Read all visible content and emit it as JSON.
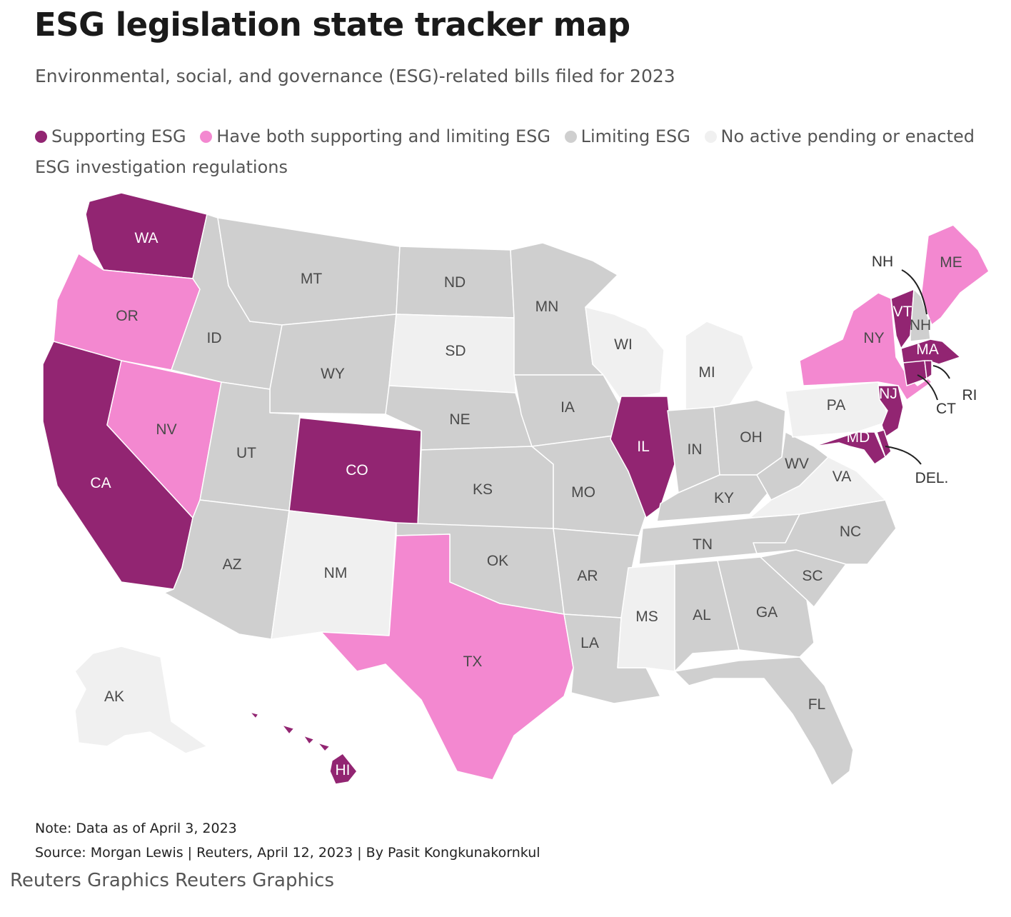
{
  "title": "ESG legislation state tracker map",
  "subtitle": "Environmental, social, and governance (ESG)-related bills filed for 2023",
  "legend": [
    {
      "key": "support",
      "label": "Supporting ESG",
      "color": "#922572"
    },
    {
      "key": "both",
      "label": "Have both supporting and limiting ESG",
      "color": "#f388d0"
    },
    {
      "key": "limit",
      "label": "Limiting ESG",
      "color": "#cfcfcf"
    },
    {
      "key": "none",
      "label": "No active pending or enacted ESG investigation regulations",
      "color": "#f0f0f0"
    }
  ],
  "states": [
    {
      "abbr": "WA",
      "category": "support"
    },
    {
      "abbr": "OR",
      "category": "both"
    },
    {
      "abbr": "CA",
      "category": "support"
    },
    {
      "abbr": "NV",
      "category": "both"
    },
    {
      "abbr": "ID",
      "category": "limit"
    },
    {
      "abbr": "MT",
      "category": "limit"
    },
    {
      "abbr": "WY",
      "category": "limit"
    },
    {
      "abbr": "UT",
      "category": "limit"
    },
    {
      "abbr": "AZ",
      "category": "limit"
    },
    {
      "abbr": "CO",
      "category": "support"
    },
    {
      "abbr": "NM",
      "category": "none"
    },
    {
      "abbr": "ND",
      "category": "limit"
    },
    {
      "abbr": "SD",
      "category": "none"
    },
    {
      "abbr": "NE",
      "category": "limit"
    },
    {
      "abbr": "KS",
      "category": "limit"
    },
    {
      "abbr": "OK",
      "category": "limit"
    },
    {
      "abbr": "TX",
      "category": "both"
    },
    {
      "abbr": "MN",
      "category": "limit"
    },
    {
      "abbr": "IA",
      "category": "limit"
    },
    {
      "abbr": "MO",
      "category": "limit"
    },
    {
      "abbr": "AR",
      "category": "limit"
    },
    {
      "abbr": "LA",
      "category": "limit"
    },
    {
      "abbr": "WI",
      "category": "none"
    },
    {
      "abbr": "IL",
      "category": "support"
    },
    {
      "abbr": "MI",
      "category": "none"
    },
    {
      "abbr": "IN",
      "category": "limit"
    },
    {
      "abbr": "OH",
      "category": "limit"
    },
    {
      "abbr": "KY",
      "category": "limit"
    },
    {
      "abbr": "TN",
      "category": "limit"
    },
    {
      "abbr": "MS",
      "category": "none"
    },
    {
      "abbr": "AL",
      "category": "limit"
    },
    {
      "abbr": "GA",
      "category": "limit"
    },
    {
      "abbr": "FL",
      "category": "limit"
    },
    {
      "abbr": "SC",
      "category": "limit"
    },
    {
      "abbr": "NC",
      "category": "limit"
    },
    {
      "abbr": "VA",
      "category": "none"
    },
    {
      "abbr": "WV",
      "category": "limit"
    },
    {
      "abbr": "PA",
      "category": "none"
    },
    {
      "abbr": "NY",
      "category": "both"
    },
    {
      "abbr": "VT",
      "category": "support"
    },
    {
      "abbr": "NH",
      "category": "limit"
    },
    {
      "abbr": "ME",
      "category": "both"
    },
    {
      "abbr": "MA",
      "category": "support"
    },
    {
      "abbr": "CT",
      "category": "support"
    },
    {
      "abbr": "RI",
      "category": "support"
    },
    {
      "abbr": "NJ",
      "category": "support"
    },
    {
      "abbr": "MD",
      "category": "support"
    },
    {
      "abbr": "DEL.",
      "category": "support"
    },
    {
      "abbr": "AK",
      "category": "none"
    },
    {
      "abbr": "HI",
      "category": "support"
    }
  ],
  "note": "Note: Data as of April 3, 2023",
  "source": "Source: Morgan Lewis | Reuters, April 12, 2023 | By Pasit Kongkunakornkul",
  "credit": "Reuters Graphics Reuters Graphics"
}
